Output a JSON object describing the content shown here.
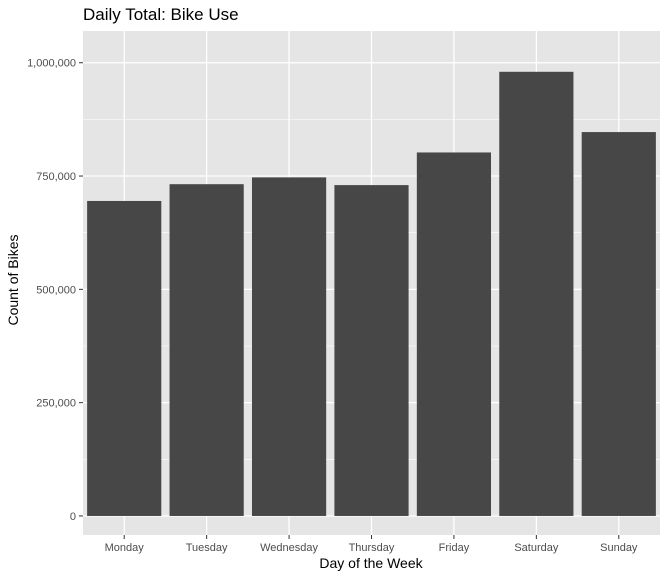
{
  "chart_data": {
    "type": "bar",
    "title": "Daily Total: Bike Use",
    "xlabel": "Day of the Week",
    "ylabel": "Count of Bikes",
    "categories": [
      "Monday",
      "Tuesday",
      "Wednesday",
      "Thursday",
      "Friday",
      "Saturday",
      "Sunday"
    ],
    "values": [
      695000,
      732000,
      747000,
      730000,
      802000,
      980000,
      847000
    ],
    "ylim": [
      -42000,
      1070000
    ],
    "yticks": [
      0,
      250000,
      500000,
      750000,
      1000000
    ],
    "ytick_labels": [
      "0",
      "250,000",
      "500,000",
      "750,000",
      "1,000,000"
    ],
    "grid": true,
    "legend": "none",
    "colors": {
      "bar": "#474747",
      "panel_background": "#e5e5e5",
      "grid_major": "#ffffff",
      "tick_text": "#4d4d4d"
    }
  }
}
